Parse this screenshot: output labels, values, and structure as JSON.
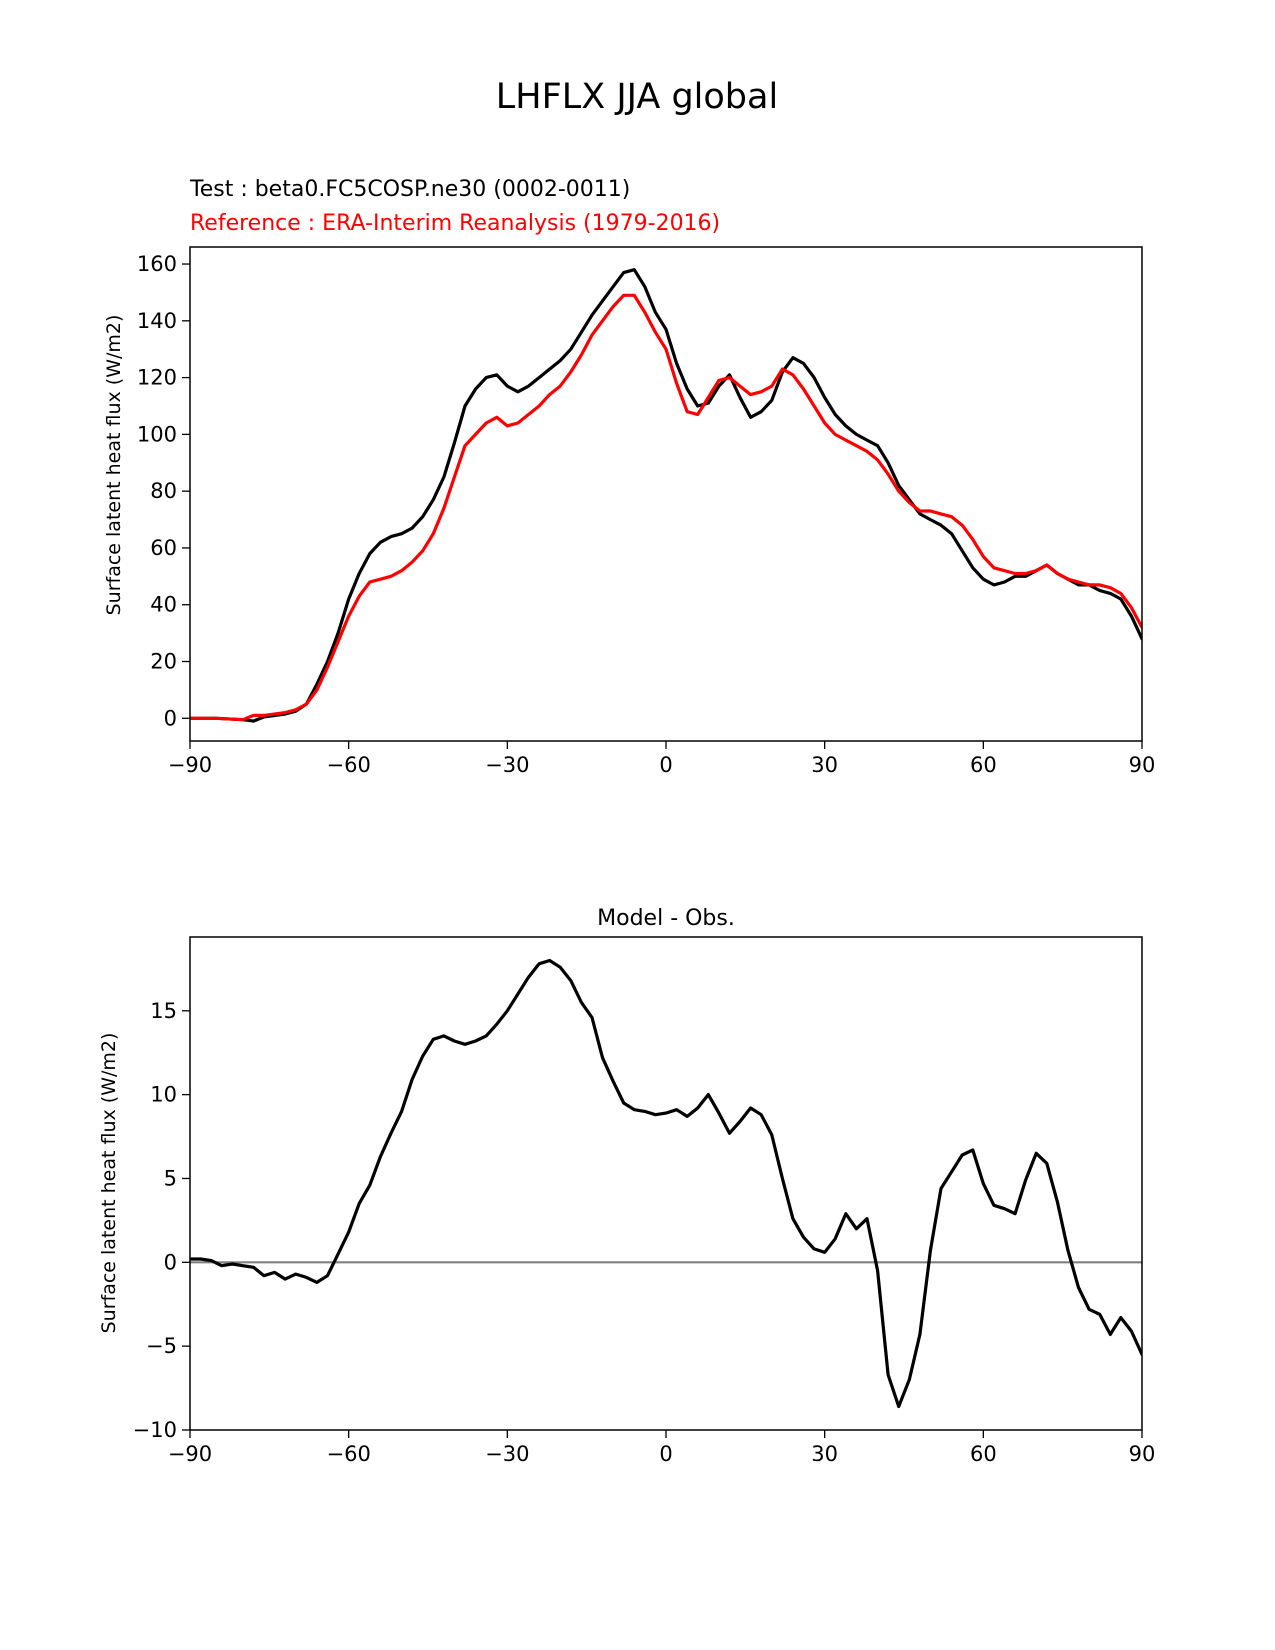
{
  "figure": {
    "suptitle": "LHFLX JJA global"
  },
  "chart_data": [
    {
      "type": "line",
      "name": "latitude-profile",
      "test_label": "Test : beta0.FC5COSP.ne30 (0002-0011)",
      "ref_label": "Reference : ERA-Interim Reanalysis (1979-2016)",
      "xlabel": "",
      "ylabel": "Surface latent heat flux (W/m2)",
      "xlim": [
        -90,
        90
      ],
      "ylim": [
        -8,
        166
      ],
      "xticks": [
        -90,
        -60,
        -30,
        0,
        30,
        60,
        90
      ],
      "xtick_labels": [
        "−90",
        "−60",
        "−30",
        "0",
        "30",
        "60",
        "90"
      ],
      "yticks": [
        0,
        20,
        40,
        60,
        80,
        100,
        120,
        140,
        160
      ],
      "ytick_labels": [
        "0",
        "20",
        "40",
        "60",
        "80",
        "100",
        "120",
        "140",
        "160"
      ],
      "series": [
        {
          "name": "Test",
          "color": "#000000",
          "points": [
            [
              -90,
              0
            ],
            [
              -85,
              0
            ],
            [
              -80,
              -0.5
            ],
            [
              -78,
              -1
            ],
            [
              -76,
              0.5
            ],
            [
              -72,
              1.5
            ],
            [
              -70,
              2.5
            ],
            [
              -68,
              5
            ],
            [
              -66,
              12
            ],
            [
              -64,
              20
            ],
            [
              -62,
              30
            ],
            [
              -60,
              42
            ],
            [
              -58,
              51
            ],
            [
              -56,
              58
            ],
            [
              -54,
              62
            ],
            [
              -52,
              64
            ],
            [
              -50,
              65
            ],
            [
              -48,
              67
            ],
            [
              -46,
              71
            ],
            [
              -44,
              77
            ],
            [
              -42,
              85
            ],
            [
              -40,
              97
            ],
            [
              -38,
              110
            ],
            [
              -36,
              116
            ],
            [
              -34,
              120
            ],
            [
              -32,
              121
            ],
            [
              -30,
              117
            ],
            [
              -28,
              115
            ],
            [
              -26,
              117
            ],
            [
              -24,
              120
            ],
            [
              -22,
              123
            ],
            [
              -20,
              126
            ],
            [
              -18,
              130
            ],
            [
              -16,
              136
            ],
            [
              -14,
              142
            ],
            [
              -12,
              147
            ],
            [
              -10,
              152
            ],
            [
              -8,
              157
            ],
            [
              -6,
              158
            ],
            [
              -4,
              152
            ],
            [
              -2,
              143
            ],
            [
              0,
              137
            ],
            [
              2,
              125
            ],
            [
              4,
              116
            ],
            [
              6,
              110
            ],
            [
              8,
              111
            ],
            [
              10,
              117
            ],
            [
              12,
              121
            ],
            [
              14,
              113
            ],
            [
              16,
              106
            ],
            [
              18,
              108
            ],
            [
              20,
              112
            ],
            [
              22,
              122
            ],
            [
              24,
              127
            ],
            [
              26,
              125
            ],
            [
              28,
              120
            ],
            [
              30,
              113
            ],
            [
              32,
              107
            ],
            [
              34,
              103
            ],
            [
              36,
              100
            ],
            [
              38,
              98
            ],
            [
              40,
              96
            ],
            [
              42,
              90
            ],
            [
              44,
              82
            ],
            [
              46,
              77
            ],
            [
              48,
              72
            ],
            [
              50,
              70
            ],
            [
              52,
              68
            ],
            [
              54,
              65
            ],
            [
              56,
              59
            ],
            [
              58,
              53
            ],
            [
              60,
              49
            ],
            [
              62,
              47
            ],
            [
              64,
              48
            ],
            [
              66,
              50
            ],
            [
              68,
              50
            ],
            [
              70,
              52
            ],
            [
              72,
              54
            ],
            [
              74,
              51
            ],
            [
              76,
              49
            ],
            [
              78,
              47
            ],
            [
              80,
              47
            ],
            [
              82,
              45
            ],
            [
              84,
              44
            ],
            [
              86,
              42
            ],
            [
              88,
              36
            ],
            [
              90,
              28
            ]
          ]
        },
        {
          "name": "Reference",
          "color": "#ff0000",
          "points": [
            [
              -90,
              0
            ],
            [
              -85,
              0
            ],
            [
              -80,
              -0.5
            ],
            [
              -78,
              1
            ],
            [
              -76,
              1
            ],
            [
              -72,
              2
            ],
            [
              -70,
              3
            ],
            [
              -68,
              5
            ],
            [
              -66,
              10
            ],
            [
              -64,
              18
            ],
            [
              -62,
              27
            ],
            [
              -60,
              36
            ],
            [
              -58,
              43
            ],
            [
              -56,
              48
            ],
            [
              -54,
              49
            ],
            [
              -52,
              50
            ],
            [
              -50,
              52
            ],
            [
              -48,
              55
            ],
            [
              -46,
              59
            ],
            [
              -44,
              65
            ],
            [
              -42,
              74
            ],
            [
              -40,
              85
            ],
            [
              -38,
              96
            ],
            [
              -36,
              100
            ],
            [
              -34,
              104
            ],
            [
              -32,
              106
            ],
            [
              -30,
              103
            ],
            [
              -28,
              104
            ],
            [
              -26,
              107
            ],
            [
              -24,
              110
            ],
            [
              -22,
              114
            ],
            [
              -20,
              117
            ],
            [
              -18,
              122
            ],
            [
              -16,
              128
            ],
            [
              -14,
              135
            ],
            [
              -12,
              140
            ],
            [
              -10,
              145
            ],
            [
              -8,
              149
            ],
            [
              -6,
              149
            ],
            [
              -4,
              143
            ],
            [
              -2,
              136
            ],
            [
              0,
              130
            ],
            [
              2,
              118
            ],
            [
              4,
              108
            ],
            [
              6,
              107
            ],
            [
              8,
              113
            ],
            [
              10,
              119
            ],
            [
              12,
              120
            ],
            [
              14,
              117
            ],
            [
              16,
              114
            ],
            [
              18,
              115
            ],
            [
              20,
              117
            ],
            [
              22,
              123
            ],
            [
              24,
              121
            ],
            [
              26,
              116
            ],
            [
              28,
              110
            ],
            [
              30,
              104
            ],
            [
              32,
              100
            ],
            [
              34,
              98
            ],
            [
              36,
              96
            ],
            [
              38,
              94
            ],
            [
              40,
              91
            ],
            [
              42,
              86
            ],
            [
              44,
              80
            ],
            [
              46,
              76
            ],
            [
              48,
              73
            ],
            [
              50,
              73
            ],
            [
              52,
              72
            ],
            [
              54,
              71
            ],
            [
              56,
              68
            ],
            [
              58,
              63
            ],
            [
              60,
              57
            ],
            [
              62,
              53
            ],
            [
              64,
              52
            ],
            [
              66,
              51
            ],
            [
              68,
              51
            ],
            [
              70,
              52
            ],
            [
              72,
              54
            ],
            [
              74,
              51
            ],
            [
              76,
              49
            ],
            [
              78,
              48
            ],
            [
              80,
              47
            ],
            [
              82,
              47
            ],
            [
              84,
              46
            ],
            [
              86,
              44
            ],
            [
              88,
              39
            ],
            [
              90,
              32
            ]
          ]
        }
      ]
    },
    {
      "type": "line",
      "name": "difference",
      "title": "Model - Obs.",
      "xlabel": "",
      "ylabel": "Surface latent heat flux (W/m2)",
      "xlim": [
        -90,
        90
      ],
      "ylim": [
        -10,
        19.4
      ],
      "xticks": [
        -90,
        -60,
        -30,
        0,
        30,
        60,
        90
      ],
      "xtick_labels": [
        "−90",
        "−60",
        "−30",
        "0",
        "30",
        "60",
        "90"
      ],
      "yticks": [
        -10,
        -5,
        0,
        5,
        10,
        15
      ],
      "ytick_labels": [
        "−10",
        "−5",
        "0",
        "5",
        "10",
        "15"
      ],
      "zero_line": 0,
      "series": [
        {
          "name": "Model - Obs.",
          "color": "#000000",
          "points": [
            [
              -90,
              0.2
            ],
            [
              -88,
              0.2
            ],
            [
              -86,
              0.1
            ],
            [
              -84,
              -0.2
            ],
            [
              -82,
              -0.1
            ],
            [
              -80,
              -0.2
            ],
            [
              -78,
              -0.3
            ],
            [
              -76,
              -0.8
            ],
            [
              -74,
              -0.6
            ],
            [
              -72,
              -1
            ],
            [
              -70,
              -0.7
            ],
            [
              -68,
              -0.9
            ],
            [
              -66,
              -1.2
            ],
            [
              -64,
              -0.8
            ],
            [
              -62,
              0.5
            ],
            [
              -60,
              1.8
            ],
            [
              -58,
              3.5
            ],
            [
              -56,
              4.6
            ],
            [
              -54,
              6.3
            ],
            [
              -52,
              7.7
            ],
            [
              -50,
              9
            ],
            [
              -48,
              10.9
            ],
            [
              -46,
              12.3
            ],
            [
              -44,
              13.3
            ],
            [
              -42,
              13.5
            ],
            [
              -40,
              13.2
            ],
            [
              -38,
              13
            ],
            [
              -36,
              13.2
            ],
            [
              -34,
              13.5
            ],
            [
              -32,
              14.2
            ],
            [
              -30,
              15
            ],
            [
              -28,
              16
            ],
            [
              -26,
              17
            ],
            [
              -24,
              17.8
            ],
            [
              -22,
              18
            ],
            [
              -20,
              17.6
            ],
            [
              -18,
              16.8
            ],
            [
              -16,
              15.5
            ],
            [
              -14,
              14.6
            ],
            [
              -12,
              12.2
            ],
            [
              -10,
              10.8
            ],
            [
              -8,
              9.5
            ],
            [
              -6,
              9.1
            ],
            [
              -4,
              9
            ],
            [
              -2,
              8.8
            ],
            [
              0,
              8.9
            ],
            [
              2,
              9.1
            ],
            [
              4,
              8.7
            ],
            [
              6,
              9.2
            ],
            [
              8,
              10
            ],
            [
              10,
              8.9
            ],
            [
              12,
              7.7
            ],
            [
              14,
              8.4
            ],
            [
              16,
              9.2
            ],
            [
              18,
              8.8
            ],
            [
              20,
              7.6
            ],
            [
              22,
              5
            ],
            [
              24,
              2.6
            ],
            [
              26,
              1.5
            ],
            [
              28,
              0.8
            ],
            [
              30,
              0.6
            ],
            [
              32,
              1.4
            ],
            [
              34,
              2.9
            ],
            [
              36,
              2
            ],
            [
              38,
              2.6
            ],
            [
              40,
              -0.5
            ],
            [
              42,
              -6.7
            ],
            [
              44,
              -8.6
            ],
            [
              46,
              -7
            ],
            [
              48,
              -4.3
            ],
            [
              50,
              0.7
            ],
            [
              52,
              4.4
            ],
            [
              54,
              5.4
            ],
            [
              56,
              6.4
            ],
            [
              58,
              6.7
            ],
            [
              60,
              4.7
            ],
            [
              62,
              3.4
            ],
            [
              64,
              3.2
            ],
            [
              66,
              2.9
            ],
            [
              68,
              4.9
            ],
            [
              70,
              6.5
            ],
            [
              72,
              5.9
            ],
            [
              74,
              3.6
            ],
            [
              76,
              0.7
            ],
            [
              78,
              -1.5
            ],
            [
              80,
              -2.8
            ],
            [
              82,
              -3.1
            ],
            [
              84,
              -4.3
            ],
            [
              86,
              -3.3
            ],
            [
              88,
              -4.1
            ],
            [
              90,
              -5.5
            ]
          ]
        }
      ]
    }
  ]
}
